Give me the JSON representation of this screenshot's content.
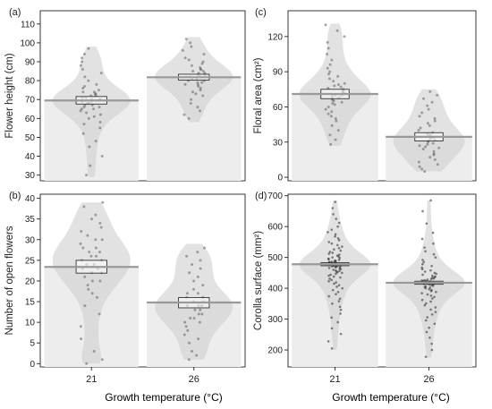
{
  "figure": {
    "x_axis_label": "Growth temperature (°C)"
  },
  "chart_data": [
    {
      "type": "violin-pirate",
      "panel_label": "(a)",
      "ylabel": "Flower height (cm)",
      "categories": [
        "21",
        "26"
      ],
      "ylim": [
        27,
        117
      ],
      "yticks": [
        30,
        40,
        50,
        60,
        70,
        80,
        90,
        100,
        110
      ],
      "means": [
        69.5,
        81.8
      ],
      "ci": [
        [
          67.6,
          71.6
        ],
        [
          80.3,
          83.4
        ]
      ],
      "ranges": [
        [
          29,
          98
        ],
        [
          58,
          103
        ]
      ],
      "points": [
        [
          30,
          35,
          40,
          45,
          48,
          52,
          55,
          57,
          58,
          60,
          61,
          62,
          63,
          64,
          65,
          65,
          66,
          66,
          67,
          67,
          68,
          68,
          69,
          69,
          70,
          70,
          70,
          71,
          71,
          72,
          72,
          73,
          73,
          74,
          74,
          75,
          76,
          77,
          78,
          80,
          82,
          84,
          86,
          88,
          90,
          92,
          94,
          97
        ],
        [
          60,
          62,
          64,
          66,
          68,
          70,
          72,
          73,
          74,
          75,
          76,
          77,
          78,
          78,
          79,
          79,
          80,
          80,
          81,
          81,
          82,
          82,
          82,
          83,
          83,
          84,
          84,
          85,
          85,
          86,
          86,
          87,
          88,
          89,
          90,
          91,
          92,
          94,
          96,
          98,
          100,
          102
        ]
      ]
    },
    {
      "type": "violin-pirate",
      "panel_label": "(b)",
      "ylabel": "Number of open flowers",
      "categories": [
        "21",
        "26"
      ],
      "ylim": [
        -0.8,
        41
      ],
      "yticks": [
        0,
        5,
        10,
        15,
        20,
        25,
        30,
        35,
        40
      ],
      "means": [
        23.4,
        14.8
      ],
      "ci": [
        [
          21.9,
          25.0
        ],
        [
          13.5,
          16.0
        ]
      ],
      "ranges": [
        [
          0,
          39
        ],
        [
          1,
          29
        ]
      ],
      "points": [
        [
          0,
          1,
          3,
          6,
          9,
          12,
          14,
          16,
          17,
          18,
          19,
          20,
          20,
          21,
          22,
          22,
          23,
          23,
          24,
          24,
          25,
          25,
          26,
          26,
          27,
          27,
          28,
          28,
          29,
          30,
          30,
          31,
          32,
          33,
          34,
          35,
          36,
          38,
          39
        ],
        [
          1,
          2,
          3,
          5,
          6,
          7,
          8,
          9,
          10,
          10,
          11,
          11,
          12,
          12,
          13,
          13,
          14,
          14,
          14,
          15,
          15,
          16,
          16,
          17,
          17,
          18,
          19,
          20,
          21,
          22,
          23,
          24,
          25,
          26,
          27,
          28
        ]
      ]
    },
    {
      "type": "violin-pirate",
      "panel_label": "(c)",
      "ylabel": "Floral area (cm²)",
      "categories": [
        "21",
        "26"
      ],
      "ylim": [
        -3,
        142
      ],
      "yticks": [
        0,
        30,
        60,
        90,
        120
      ],
      "means": [
        71.0,
        34.5
      ],
      "ci": [
        [
          67.0,
          75.0
        ],
        [
          31.0,
          38.0
        ]
      ],
      "ranges": [
        [
          27,
          131
        ],
        [
          5,
          75
        ]
      ],
      "points": [
        [
          28,
          32,
          36,
          40,
          44,
          48,
          50,
          52,
          54,
          56,
          58,
          60,
          62,
          63,
          64,
          65,
          66,
          67,
          68,
          69,
          70,
          70,
          71,
          72,
          73,
          74,
          75,
          76,
          77,
          78,
          79,
          80,
          82,
          84,
          86,
          88,
          90,
          93,
          96,
          100,
          105,
          110,
          115,
          120,
          125,
          130
        ],
        [
          5,
          7,
          9,
          11,
          13,
          15,
          17,
          19,
          20,
          22,
          24,
          25,
          26,
          27,
          28,
          29,
          30,
          31,
          32,
          33,
          34,
          35,
          36,
          37,
          38,
          40,
          42,
          44,
          46,
          48,
          50,
          52,
          55,
          58,
          61,
          64,
          67,
          70,
          73
        ]
      ]
    },
    {
      "type": "violin-pirate",
      "panel_label": "(d)",
      "ylabel": "Corolla surface (mm²)",
      "categories": [
        "21",
        "26"
      ],
      "ylim": [
        145,
        705
      ],
      "yticks": [
        200,
        300,
        400,
        500,
        600,
        700
      ],
      "means": [
        478,
        418
      ],
      "ci": [
        [
          473,
          483
        ],
        [
          413,
          423
        ]
      ],
      "ranges": [
        [
          200,
          685
        ],
        [
          175,
          685
        ]
      ],
      "points": [
        [
          205,
          228,
          252,
          270,
          290,
          305,
          318,
          330,
          340,
          350,
          358,
          366,
          374,
          381,
          388,
          394,
          400,
          405,
          410,
          415,
          419,
          423,
          427,
          431,
          435,
          438,
          441,
          444,
          447,
          450,
          452,
          454,
          456,
          458,
          460,
          462,
          464,
          466,
          468,
          469,
          470,
          471,
          472,
          473,
          474,
          475,
          476,
          477,
          478,
          478,
          479,
          480,
          481,
          482,
          483,
          484,
          485,
          486,
          487,
          488,
          490,
          492,
          494,
          496,
          498,
          500,
          503,
          506,
          509,
          512,
          515,
          518,
          522,
          526,
          530,
          535,
          540,
          545,
          550,
          556,
          562,
          568,
          575,
          582,
          590,
          600,
          612,
          625,
          640,
          660,
          680
        ],
        [
          178,
          200,
          220,
          240,
          258,
          272,
          285,
          296,
          306,
          315,
          323,
          331,
          338,
          345,
          351,
          357,
          362,
          367,
          372,
          376,
          380,
          384,
          388,
          391,
          394,
          397,
          400,
          402,
          404,
          406,
          408,
          410,
          412,
          413,
          414,
          415,
          416,
          417,
          418,
          419,
          420,
          421,
          422,
          423,
          424,
          425,
          426,
          428,
          430,
          432,
          434,
          436,
          438,
          441,
          444,
          447,
          450,
          454,
          458,
          462,
          467,
          472,
          478,
          485,
          492,
          500,
          510,
          520,
          532,
          545,
          560,
          580,
          610,
          650,
          685
        ]
      ]
    }
  ]
}
